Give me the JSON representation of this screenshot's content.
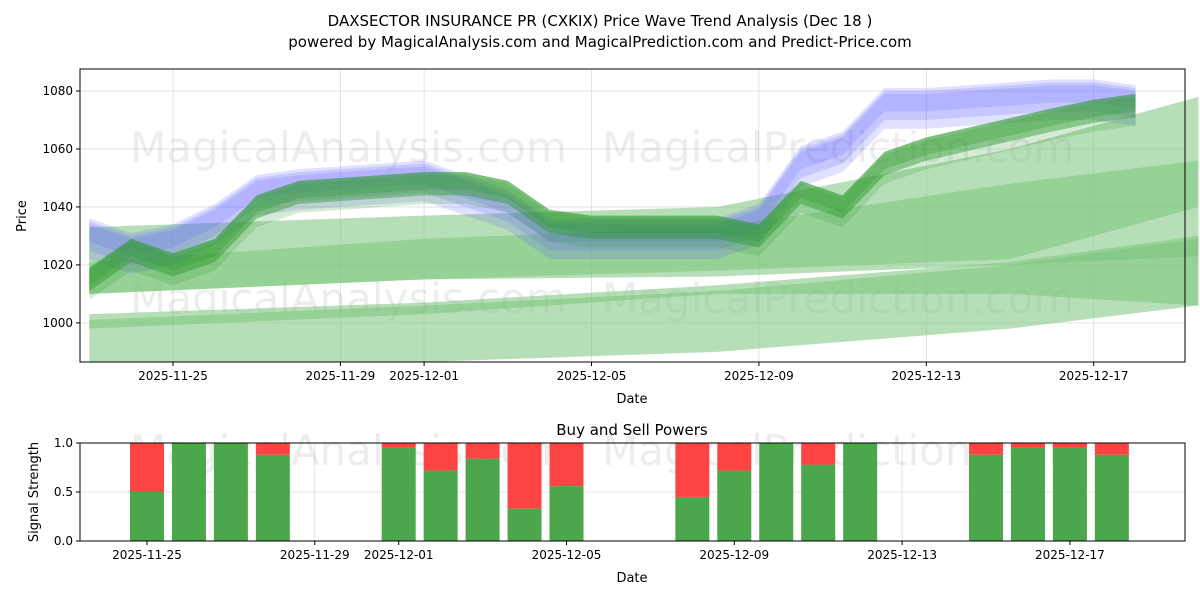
{
  "title_line1": "DAXSECTOR INSURANCE PR (CXKIX) Price Wave Trend Analysis (Dec 18 )",
  "title_line2": "powered by MagicalAnalysis.com and MagicalPrediction.com and Predict-Price.com",
  "watermarks": [
    "MagicalAnalysis.com",
    "MagicalPrediction.com"
  ],
  "colors": {
    "blue": "#6666ff",
    "green": "#2e9a2e",
    "pale_green": "#7cc47c",
    "buy": "#4ca64c",
    "sell": "#ff4444"
  },
  "chart_data": [
    {
      "type": "area",
      "title": "",
      "xlabel": "Date",
      "ylabel": "Price",
      "ylim": [
        986.5,
        1087.6
      ],
      "yticks": [
        1000,
        1020,
        1040,
        1060,
        1080
      ],
      "xticks": [
        "2025-11-25",
        "2025-11-29",
        "2025-12-01",
        "2025-12-05",
        "2025-12-09",
        "2025-12-13",
        "2025-12-17"
      ],
      "grid": true,
      "x_days_from_2025_11_25": [
        -2,
        -1,
        0,
        1,
        2,
        3,
        6,
        7,
        8,
        9,
        10,
        13,
        14,
        15,
        16,
        17,
        18,
        21,
        22,
        23
      ],
      "blue_band_center": [
        1030,
        1025,
        1028,
        1035,
        1045,
        1047,
        1050,
        1045,
        1040,
        1030,
        1030,
        1030,
        1035,
        1055,
        1060,
        1075,
        1075,
        1078,
        1078,
        1076
      ],
      "green_line_center": [
        1015,
        1025,
        1020,
        1025,
        1040,
        1045,
        1048,
        1048,
        1045,
        1035,
        1033,
        1033,
        1030,
        1045,
        1040,
        1055,
        1060,
        1070,
        1073,
        1075
      ],
      "green_bands": [
        {
          "x": [
            -2,
            6,
            13,
            20,
            24.5
          ],
          "upper": [
            1033,
            1037,
            1040,
            1060,
            1078
          ],
          "lower": [
            1010,
            1015,
            1018,
            1022,
            1040
          ]
        },
        {
          "x": [
            -2,
            6,
            13,
            20,
            24.5
          ],
          "upper": [
            1021,
            1029,
            1033,
            1048,
            1056
          ],
          "lower": [
            1010,
            1015,
            1016,
            1020,
            1023
          ]
        },
        {
          "x": [
            -2,
            6,
            13,
            20,
            24.5
          ],
          "upper": [
            1003,
            1007,
            1013,
            1021,
            1030
          ],
          "lower": [
            998,
            1003,
            1010,
            1010,
            1006
          ]
        },
        {
          "x": [
            -2,
            6,
            13,
            20,
            24.5
          ],
          "upper": [
            1001,
            1006,
            1011,
            1020,
            1029
          ],
          "lower": [
            986.5,
            986.5,
            990,
            998,
            1006
          ]
        }
      ]
    },
    {
      "type": "bar",
      "title": "Buy and Sell Powers",
      "xlabel": "Date",
      "ylabel": "Signal Strength",
      "ylim": [
        0,
        1
      ],
      "yticks": [
        "0.0",
        "0.5",
        "1.0"
      ],
      "xticks": [
        "2025-11-25",
        "2025-11-29",
        "2025-12-01",
        "2025-12-05",
        "2025-12-09",
        "2025-12-13",
        "2025-12-17"
      ],
      "categories": [
        "2025-11-25",
        "2025-11-26",
        "2025-11-27",
        "2025-11-28",
        "2025-12-01",
        "2025-12-02",
        "2025-12-03",
        "2025-12-04",
        "2025-12-05",
        "2025-12-08",
        "2025-12-09",
        "2025-12-10",
        "2025-12-11",
        "2025-12-12",
        "2025-12-15",
        "2025-12-16",
        "2025-12-17",
        "2025-12-18"
      ],
      "buy": [
        0.5,
        1.0,
        1.0,
        0.88,
        0.95,
        0.72,
        0.84,
        0.33,
        0.56,
        0.45,
        0.72,
        1.0,
        0.78,
        1.0,
        0.88,
        0.95,
        0.95,
        0.88
      ],
      "sell": [
        0.5,
        0.0,
        0.0,
        0.12,
        0.05,
        0.28,
        0.16,
        0.67,
        0.44,
        0.55,
        0.28,
        0.0,
        0.22,
        0.0,
        0.12,
        0.05,
        0.05,
        0.12
      ]
    }
  ]
}
